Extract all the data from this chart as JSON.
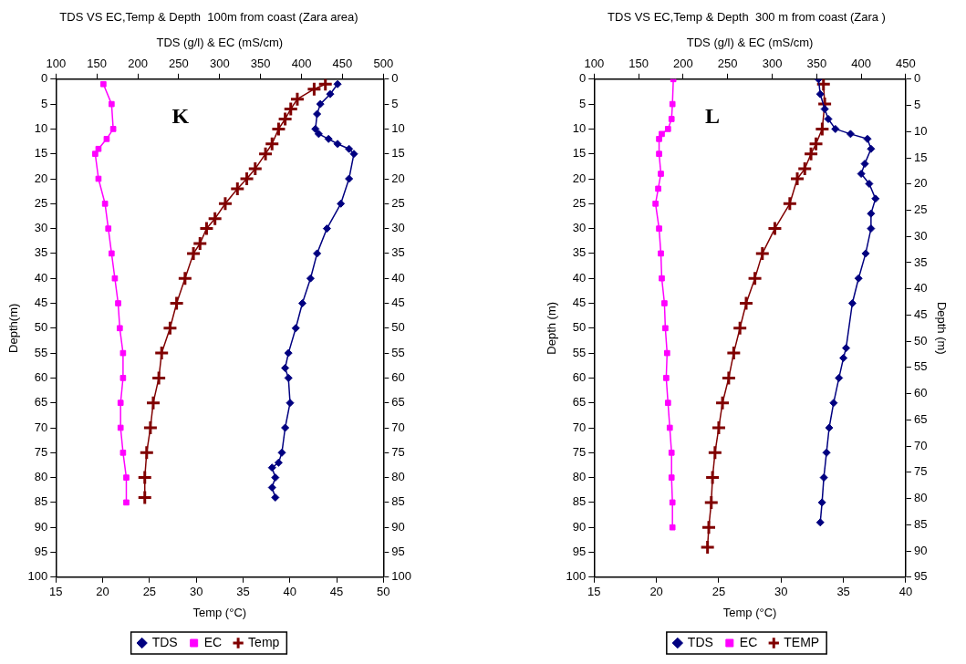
{
  "chart_data": [
    {
      "type": "line",
      "title": "TDS VS EC,Temp & Depth  100m from coast (Zara area)",
      "x2label": "TDS (g/l) & EC (mS/cm)",
      "xlabel": "Temp (°C)",
      "ylabel": "Depth(m)",
      "annotations": [
        "K"
      ],
      "xlim": [
        15,
        50
      ],
      "xticks": [
        15,
        20,
        25,
        30,
        35,
        40,
        45,
        50
      ],
      "x2lim": [
        100,
        500
      ],
      "x2ticks": [
        100,
        150,
        200,
        250,
        300,
        350,
        400,
        450,
        500
      ],
      "ylim": [
        100,
        0
      ],
      "yticks": [
        0,
        5,
        10,
        15,
        20,
        25,
        30,
        35,
        40,
        45,
        50,
        55,
        60,
        65,
        70,
        75,
        80,
        85,
        90,
        95,
        100
      ],
      "y2lim": [
        100,
        0
      ],
      "y2ticks": [
        0,
        5,
        10,
        15,
        20,
        25,
        30,
        35,
        40,
        45,
        50,
        55,
        60,
        65,
        70,
        75,
        80,
        85,
        90,
        95,
        100
      ],
      "grid": false,
      "legend": "bottom",
      "series": [
        {
          "name": "TDS",
          "color": "#000080",
          "marker": "diamond",
          "axis": "x2",
          "x": [
            444,
            435,
            423,
            419,
            417,
            421,
            433,
            444,
            458,
            464,
            458,
            448,
            431,
            419,
            411,
            401,
            393,
            384,
            380,
            384,
            386,
            380,
            376,
            372,
            364,
            368,
            364,
            368
          ],
          "values": [
            1,
            3,
            5,
            7,
            10,
            11,
            12,
            13,
            14,
            15,
            20,
            25,
            30,
            35,
            40,
            45,
            50,
            55,
            58,
            60,
            65,
            70,
            75,
            77,
            78,
            80,
            82,
            84
          ]
        },
        {
          "name": "EC",
          "color": "#ff00ff",
          "marker": "square",
          "axis": "x2",
          "x": [
            158,
            168,
            170,
            162,
            152,
            148,
            152,
            160,
            164,
            168,
            172,
            176,
            178,
            182,
            182,
            179,
            179,
            182,
            186,
            186
          ],
          "values": [
            1,
            5,
            10,
            12,
            14,
            15,
            20,
            25,
            30,
            35,
            40,
            45,
            50,
            55,
            60,
            65,
            70,
            75,
            80,
            85
          ]
        },
        {
          "name": "Temp",
          "color": "#800000",
          "marker": "cross",
          "x": [
            43.8,
            42.6,
            40.8,
            40.1,
            39.5,
            38.8,
            38.1,
            37.4,
            36.3,
            35.4,
            34.4,
            33.1,
            32.0,
            31.1,
            30.4,
            29.7,
            28.8,
            27.9,
            27.2,
            26.3,
            26.0,
            25.4,
            25.1,
            24.7,
            24.5,
            24.5
          ],
          "values": [
            1,
            2,
            4,
            6,
            8,
            10,
            13,
            15,
            18,
            20,
            22,
            25,
            28,
            30,
            33,
            35,
            40,
            45,
            50,
            55,
            60,
            65,
            70,
            75,
            80,
            84
          ]
        }
      ]
    },
    {
      "type": "line",
      "title": "TDS VS EC,Temp & Depth  300 m from coast (Zara )",
      "x2label": "TDS (g/l) & EC (mS/cm)",
      "xlabel": "Temp (°C)",
      "ylabel": "Depth (m)",
      "y2label": "Depth (m)",
      "annotations": [
        "L"
      ],
      "xlim": [
        15,
        40
      ],
      "xticks": [
        15,
        20,
        25,
        30,
        35,
        40
      ],
      "x2lim": [
        100,
        450
      ],
      "x2ticks": [
        100,
        150,
        200,
        250,
        300,
        350,
        400,
        450
      ],
      "ylim": [
        100,
        0
      ],
      "yticks": [
        0,
        5,
        10,
        15,
        20,
        25,
        30,
        35,
        40,
        45,
        50,
        55,
        60,
        65,
        70,
        75,
        80,
        85,
        90,
        95,
        100
      ],
      "y2lim": [
        95,
        0
      ],
      "y2ticks": [
        0,
        5,
        10,
        15,
        20,
        25,
        30,
        35,
        40,
        45,
        50,
        55,
        60,
        65,
        70,
        75,
        80,
        85,
        90,
        95
      ],
      "grid": false,
      "legend": "bottom",
      "series": [
        {
          "name": "TDS",
          "color": "#000080",
          "marker": "diamond",
          "axis": "x2",
          "x": [
            352,
            354,
            359,
            363,
            371,
            388,
            407,
            411,
            404,
            400,
            409,
            416,
            411,
            411,
            405,
            397,
            390,
            383,
            380,
            375,
            369,
            364,
            361,
            358,
            356,
            354
          ],
          "values": [
            0,
            3,
            6,
            8,
            10,
            11,
            12,
            14,
            17,
            19,
            21,
            24,
            27,
            30,
            35,
            40,
            45,
            54,
            56,
            60,
            65,
            70,
            75,
            80,
            85,
            89
          ]
        },
        {
          "name": "EC",
          "color": "#ff00ff",
          "marker": "square",
          "axis": "x2",
          "x": [
            189,
            188,
            187,
            183,
            176,
            173,
            173,
            175,
            172,
            169,
            173,
            175,
            176,
            179,
            180,
            182,
            181,
            183,
            185,
            187,
            187,
            188,
            188
          ],
          "values": [
            0,
            5,
            8,
            10,
            11,
            12,
            15,
            19,
            22,
            25,
            30,
            35,
            40,
            45,
            50,
            55,
            60,
            65,
            70,
            75,
            80,
            85,
            90
          ]
        },
        {
          "name": "TEMP",
          "color": "#800000",
          "marker": "cross",
          "x": [
            33.4,
            33.5,
            33.3,
            32.8,
            32.4,
            31.9,
            31.3,
            30.7,
            29.5,
            28.5,
            27.9,
            27.2,
            26.7,
            26.2,
            25.8,
            25.3,
            25.0,
            24.7,
            24.5,
            24.4,
            24.2,
            24.1
          ],
          "values": [
            1,
            5,
            10,
            13,
            15,
            18,
            20,
            25,
            30,
            35,
            40,
            45,
            50,
            55,
            60,
            65,
            70,
            75,
            80,
            85,
            90,
            94
          ]
        }
      ]
    }
  ]
}
